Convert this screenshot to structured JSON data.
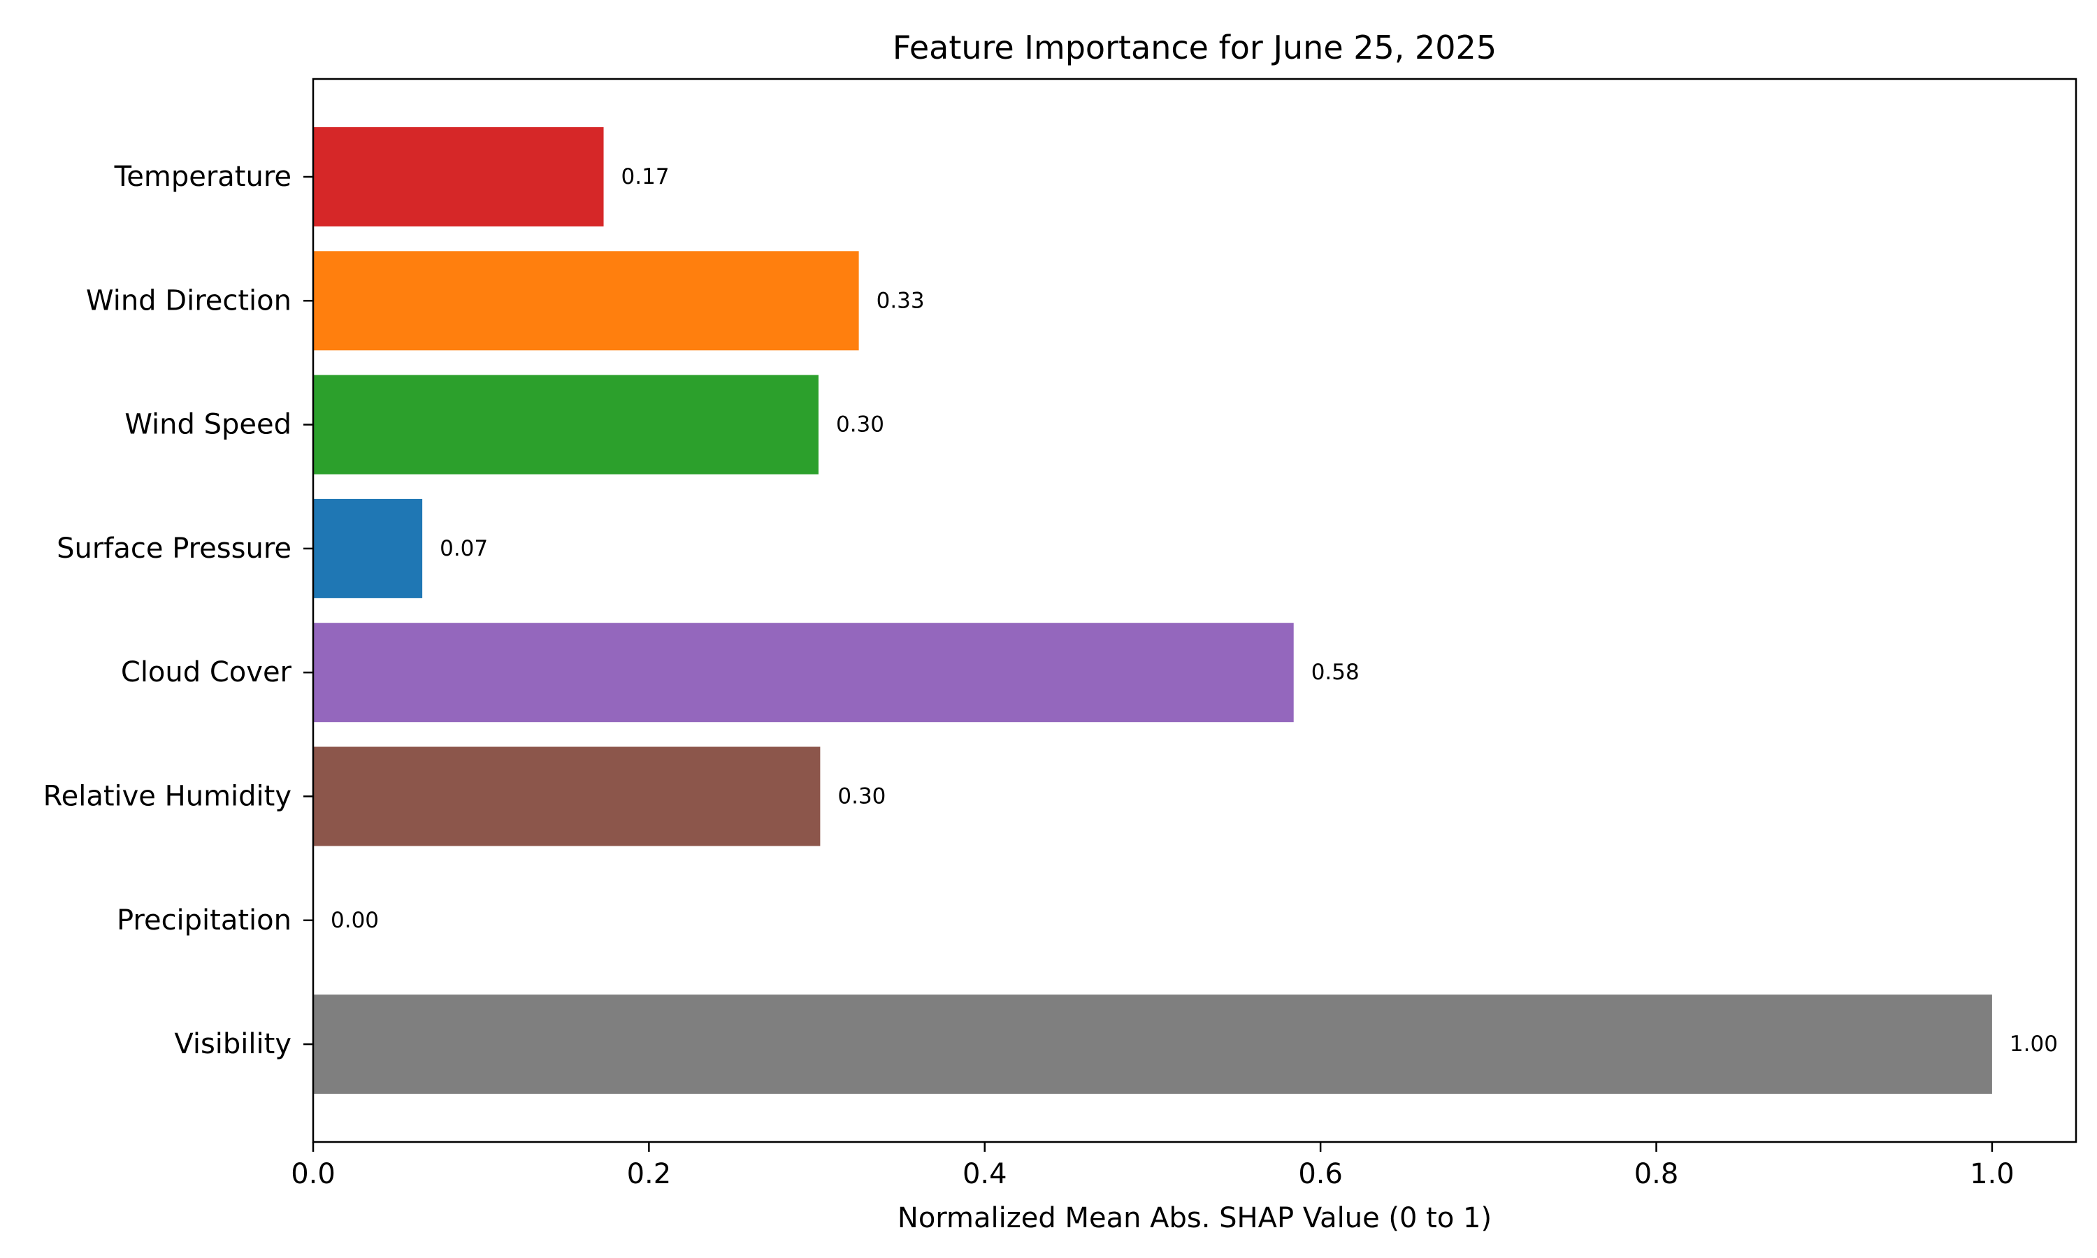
{
  "chart_data": {
    "type": "bar",
    "orientation": "horizontal",
    "title": "Feature Importance for June 25, 2025",
    "xlabel": "Normalized Mean Abs. SHAP Value (0 to 1)",
    "ylabel": "",
    "xlim": [
      0,
      1.05
    ],
    "xticks": [
      0.0,
      0.2,
      0.4,
      0.6,
      0.8,
      1.0
    ],
    "xtick_labels": [
      "0.0",
      "0.2",
      "0.4",
      "0.6",
      "0.8",
      "1.0"
    ],
    "grid": false,
    "legend": "none",
    "categories": [
      "Temperature",
      "Wind Direction",
      "Wind Speed",
      "Surface Pressure",
      "Cloud Cover",
      "Relative Humidity",
      "Precipitation",
      "Visibility"
    ],
    "values": [
      0.173,
      0.325,
      0.301,
      0.065,
      0.584,
      0.302,
      0.0,
      1.0
    ],
    "value_labels": [
      "0.17",
      "0.33",
      "0.30",
      "0.07",
      "0.58",
      "0.30",
      "0.00",
      "1.00"
    ],
    "colors": [
      "#d62728",
      "#ff7f0e",
      "#2ca02c",
      "#1f77b4",
      "#9467bd",
      "#8c564b",
      "#e377c2",
      "#7f7f7f"
    ]
  }
}
